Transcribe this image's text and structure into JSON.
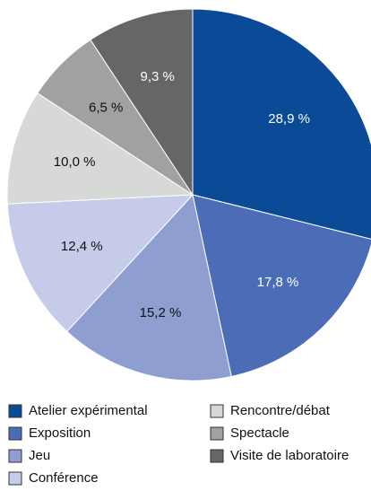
{
  "chart_data": {
    "type": "pie",
    "categories": [
      "Atelier expérimental",
      "Exposition",
      "Jeu",
      "Conférence",
      "Rencontre/débat",
      "Spectacle",
      "Visite de laboratoire"
    ],
    "values": [
      28.9,
      17.8,
      15.2,
      12.4,
      10.0,
      6.5,
      9.3
    ],
    "value_labels": [
      "28,9 %",
      "17,8 %",
      "15,2 %",
      "12,4 %",
      "10,0 %",
      "6,5 %",
      "9,3 %"
    ],
    "colors": [
      "#0b4a97",
      "#4b6cb6",
      "#8e9ed1",
      "#c6cbe9",
      "#d7d9d7",
      "#a1a1a1",
      "#666666"
    ]
  }
}
